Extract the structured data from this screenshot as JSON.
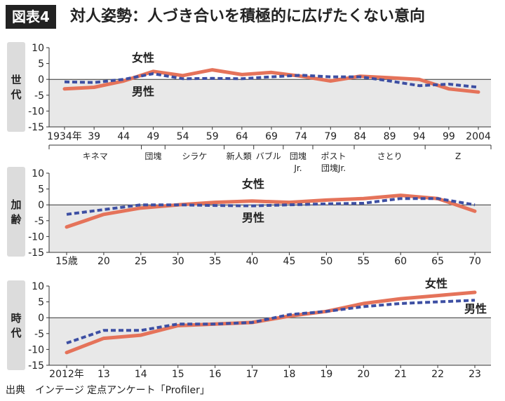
{
  "header": {
    "badge": "図表4",
    "title": "対人姿勢：人づき合いを積極的に広げたくない意向"
  },
  "source": "出典　インテージ 定点アンケート「Profiler」",
  "colors": {
    "female": "#e5735a",
    "male": "#3d4fa3",
    "plot_bg": "#e8e8e8",
    "side_bg": "#dcdcdc"
  },
  "chart_data": [
    {
      "type": "line",
      "side_label": "世代",
      "ylim": [
        -15,
        10
      ],
      "yticks": [
        10,
        5,
        0,
        -5,
        -10,
        -15
      ],
      "x": [
        1934,
        1939,
        1944,
        1949,
        1954,
        1959,
        1964,
        1969,
        1974,
        1979,
        1984,
        1989,
        1994,
        1999,
        2004
      ],
      "xticks": [
        "1934年",
        "39",
        "44",
        "49",
        "54",
        "59",
        "64",
        "69",
        "74",
        "79",
        "84",
        "89",
        "94",
        "99",
        "2004"
      ],
      "groups": [
        {
          "label": "キネマ",
          "from": 1934,
          "to": 1947
        },
        {
          "label": "団塊",
          "from": 1947,
          "to": 1951
        },
        {
          "label": "シラケ",
          "from": 1951,
          "to": 1961
        },
        {
          "label": "新人類",
          "from": 1961,
          "to": 1966
        },
        {
          "label": "バブル",
          "from": 1966,
          "to": 1971
        },
        {
          "label": "団塊\nJr.",
          "from": 1971,
          "to": 1976
        },
        {
          "label": "ポスト\n団塊Jr.",
          "from": 1976,
          "to": 1983
        },
        {
          "label": "さとり",
          "from": 1983,
          "to": 1995
        },
        {
          "label": "Z",
          "from": 1995,
          "to": 2004
        }
      ],
      "series": [
        {
          "name": "女性",
          "values": [
            -3,
            -2.5,
            -0.5,
            2.5,
            1.2,
            3,
            1.5,
            2.2,
            1,
            -0.5,
            1,
            0.5,
            0,
            -3,
            -4
          ]
        },
        {
          "name": "男性",
          "values": [
            -0.8,
            -1,
            0,
            1.8,
            0.2,
            0.3,
            0.2,
            0.8,
            1.3,
            0.8,
            0.8,
            -0.5,
            -2,
            -1.5,
            -2.5
          ]
        }
      ]
    },
    {
      "type": "line",
      "side_label": "加齢",
      "ylim": [
        -15,
        10
      ],
      "yticks": [
        10,
        5,
        0,
        -5,
        -10,
        -15
      ],
      "x": [
        15,
        20,
        25,
        30,
        35,
        40,
        45,
        50,
        55,
        60,
        65,
        70
      ],
      "xticks": [
        "15歳",
        "20",
        "25",
        "30",
        "35",
        "40",
        "45",
        "50",
        "55",
        "60",
        "65",
        "70"
      ],
      "groups": [],
      "series": [
        {
          "name": "女性",
          "values": [
            -7,
            -3,
            -1,
            0,
            0.8,
            1.2,
            0.8,
            1.5,
            2,
            3,
            2,
            -2
          ]
        },
        {
          "name": "男性",
          "values": [
            -3,
            -1.5,
            0,
            0,
            -0.2,
            -0.3,
            0,
            0.3,
            0.5,
            2,
            2,
            0
          ]
        }
      ]
    },
    {
      "type": "line",
      "side_label": "時代",
      "ylim": [
        -15,
        10
      ],
      "yticks": [
        10,
        5,
        0,
        -5,
        -10,
        -15
      ],
      "x": [
        2012,
        2013,
        2014,
        2015,
        2016,
        2017,
        2018,
        2019,
        2020,
        2021,
        2022,
        2023
      ],
      "xticks": [
        "2012年",
        "13",
        "14",
        "15",
        "16",
        "17",
        "18",
        "19",
        "20",
        "21",
        "22",
        "23"
      ],
      "groups": [],
      "series": [
        {
          "name": "女性",
          "values": [
            -11,
            -6.5,
            -5.5,
            -2.5,
            -2,
            -1.5,
            0.5,
            2,
            4.5,
            6,
            7,
            8
          ]
        },
        {
          "name": "男性",
          "values": [
            -8,
            -4,
            -4,
            -2,
            -2,
            -1.5,
            1,
            2,
            3.5,
            4.5,
            5,
            5.5
          ]
        }
      ]
    }
  ]
}
